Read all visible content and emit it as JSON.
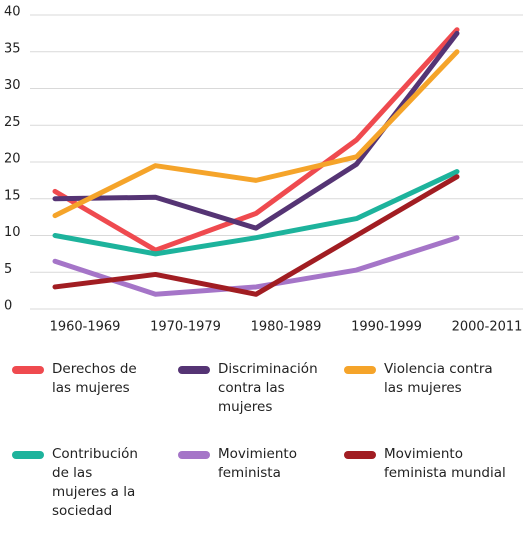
{
  "chart_data": {
    "type": "line",
    "categories": [
      "1960-1969",
      "1970-1979",
      "1980-1989",
      "1990-1999",
      "2000-2011"
    ],
    "ylim": [
      0,
      40
    ],
    "yticks": [
      0,
      5,
      10,
      15,
      20,
      25,
      30,
      35,
      40
    ],
    "grid": true,
    "series": [
      {
        "name": "Derechos de las mujeres",
        "color": "#ef4a4f",
        "values": [
          16,
          8,
          13,
          23,
          38
        ]
      },
      {
        "name": "Discriminación contra las mujeres",
        "color": "#553474",
        "values": [
          15,
          15.2,
          11,
          19.7,
          37.5
        ]
      },
      {
        "name": "Violencia contra las mujeres",
        "color": "#f5a42a",
        "values": [
          12.7,
          19.5,
          17.5,
          20.7,
          35
        ]
      },
      {
        "name": "Contribución de las mujeres a la sociedad",
        "color": "#1db39c",
        "values": [
          10,
          7.5,
          9.7,
          12.3,
          18.7
        ]
      },
      {
        "name": "Movimiento feminista",
        "color": "#a575c8",
        "values": [
          6.5,
          2,
          3,
          5.3,
          9.7
        ]
      },
      {
        "name": "Movimiento feminista mundial",
        "color": "#a11d22",
        "values": [
          3,
          4.7,
          2,
          10,
          18
        ]
      }
    ]
  }
}
